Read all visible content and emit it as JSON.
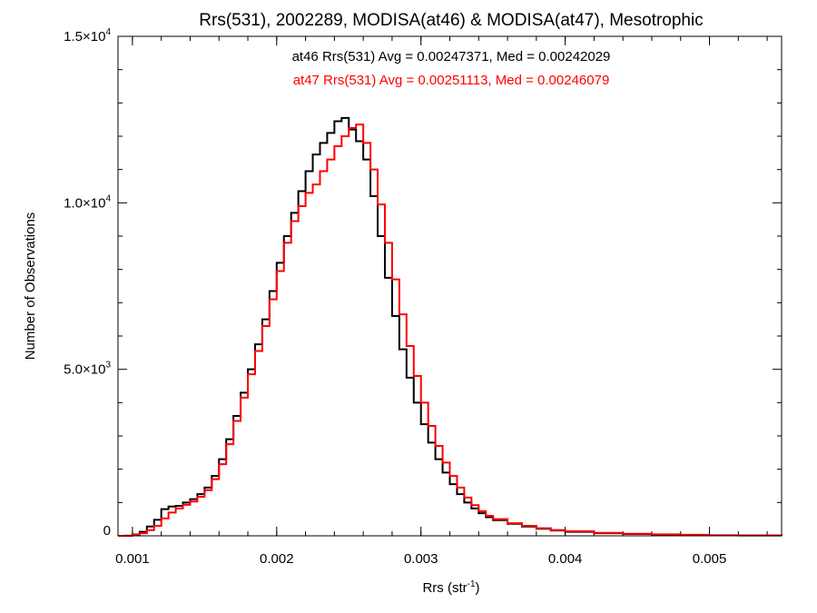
{
  "chart_data": {
    "type": "line",
    "style": "step histogram",
    "title": "Rrs(531), 2002289, MODISA(at46) & MODISA(at47), Mesotrophic",
    "xlabel": {
      "base": "Rrs (str",
      "sup": "-1",
      "tail": ")"
    },
    "ylabel": "Number of Observations",
    "xlim": [
      0.0009,
      0.0055
    ],
    "ylim": [
      0,
      15000
    ],
    "x_ticks": [
      {
        "value": 0.001,
        "label": "0.001"
      },
      {
        "value": 0.002,
        "label": "0.002"
      },
      {
        "value": 0.003,
        "label": "0.003"
      },
      {
        "value": 0.004,
        "label": "0.004"
      },
      {
        "value": 0.005,
        "label": "0.005"
      }
    ],
    "x_minor_step": 0.0002,
    "y_ticks": [
      {
        "value": 0,
        "base": "0",
        "sup": ""
      },
      {
        "value": 5000,
        "base": "5.0×10",
        "sup": "3"
      },
      {
        "value": 10000,
        "base": "1.0×10",
        "sup": "4"
      },
      {
        "value": 15000,
        "base": "1.5×10",
        "sup": "4"
      }
    ],
    "y_minor_step": 1000,
    "annotations": [
      {
        "text": "at46 Rrs(531) Avg = 0.00247371, Med = 0.00242029",
        "color": "#000000"
      },
      {
        "text": "at47 Rrs(531) Avg = 0.00251113, Med = 0.00246079",
        "color": "#ff0000"
      }
    ],
    "series": [
      {
        "color": "#000000",
        "points": [
          [
            0.0009,
            0
          ],
          [
            0.00095,
            5
          ],
          [
            0.001,
            40
          ],
          [
            0.00105,
            120
          ],
          [
            0.0011,
            280
          ],
          [
            0.00115,
            480
          ],
          [
            0.0012,
            800
          ],
          [
            0.00125,
            880
          ],
          [
            0.0013,
            900
          ],
          [
            0.00135,
            1000
          ],
          [
            0.0014,
            1100
          ],
          [
            0.00145,
            1250
          ],
          [
            0.0015,
            1450
          ],
          [
            0.00155,
            1800
          ],
          [
            0.0016,
            2300
          ],
          [
            0.00165,
            2900
          ],
          [
            0.0017,
            3600
          ],
          [
            0.00175,
            4300
          ],
          [
            0.0018,
            5000
          ],
          [
            0.00185,
            5750
          ],
          [
            0.0019,
            6500
          ],
          [
            0.00195,
            7350
          ],
          [
            0.002,
            8200
          ],
          [
            0.00205,
            9000
          ],
          [
            0.0021,
            9700
          ],
          [
            0.00215,
            10350
          ],
          [
            0.0022,
            10950
          ],
          [
            0.00225,
            11450
          ],
          [
            0.0023,
            11800
          ],
          [
            0.00235,
            12100
          ],
          [
            0.0024,
            12450
          ],
          [
            0.00245,
            12550
          ],
          [
            0.0025,
            12200
          ],
          [
            0.00255,
            11850
          ],
          [
            0.0026,
            11300
          ],
          [
            0.00265,
            10200
          ],
          [
            0.0027,
            9000
          ],
          [
            0.00275,
            7750
          ],
          [
            0.0028,
            6600
          ],
          [
            0.00285,
            5600
          ],
          [
            0.0029,
            4750
          ],
          [
            0.00295,
            4000
          ],
          [
            0.003,
            3350
          ],
          [
            0.00305,
            2800
          ],
          [
            0.0031,
            2300
          ],
          [
            0.00315,
            1900
          ],
          [
            0.0032,
            1550
          ],
          [
            0.00325,
            1250
          ],
          [
            0.0033,
            1000
          ],
          [
            0.00335,
            820
          ],
          [
            0.0034,
            680
          ],
          [
            0.00345,
            560
          ],
          [
            0.0035,
            470
          ],
          [
            0.0036,
            360
          ],
          [
            0.0037,
            280
          ],
          [
            0.0038,
            210
          ],
          [
            0.0039,
            160
          ],
          [
            0.004,
            120
          ],
          [
            0.0042,
            80
          ],
          [
            0.0044,
            55
          ],
          [
            0.0046,
            40
          ],
          [
            0.0048,
            25
          ],
          [
            0.005,
            15
          ],
          [
            0.0052,
            10
          ],
          [
            0.0055,
            5
          ]
        ]
      },
      {
        "color": "#ff0000",
        "points": [
          [
            0.0009,
            0
          ],
          [
            0.00095,
            5
          ],
          [
            0.001,
            30
          ],
          [
            0.00105,
            80
          ],
          [
            0.0011,
            170
          ],
          [
            0.00115,
            300
          ],
          [
            0.0012,
            520
          ],
          [
            0.00125,
            700
          ],
          [
            0.0013,
            820
          ],
          [
            0.00135,
            930
          ],
          [
            0.0014,
            1030
          ],
          [
            0.00145,
            1170
          ],
          [
            0.0015,
            1370
          ],
          [
            0.00155,
            1700
          ],
          [
            0.0016,
            2150
          ],
          [
            0.00165,
            2750
          ],
          [
            0.0017,
            3450
          ],
          [
            0.00175,
            4150
          ],
          [
            0.0018,
            4850
          ],
          [
            0.00185,
            5550
          ],
          [
            0.0019,
            6300
          ],
          [
            0.00195,
            7100
          ],
          [
            0.002,
            7950
          ],
          [
            0.00205,
            8800
          ],
          [
            0.0021,
            9450
          ],
          [
            0.00215,
            9900
          ],
          [
            0.0022,
            10300
          ],
          [
            0.00225,
            10550
          ],
          [
            0.0023,
            10950
          ],
          [
            0.00235,
            11300
          ],
          [
            0.0024,
            11700
          ],
          [
            0.00245,
            12000
          ],
          [
            0.0025,
            12250
          ],
          [
            0.00255,
            12350
          ],
          [
            0.0026,
            11800
          ],
          [
            0.00265,
            11000
          ],
          [
            0.0027,
            9950
          ],
          [
            0.00275,
            8800
          ],
          [
            0.0028,
            7700
          ],
          [
            0.00285,
            6650
          ],
          [
            0.0029,
            5700
          ],
          [
            0.00295,
            4800
          ],
          [
            0.003,
            4000
          ],
          [
            0.00305,
            3300
          ],
          [
            0.0031,
            2700
          ],
          [
            0.00315,
            2200
          ],
          [
            0.0032,
            1800
          ],
          [
            0.00325,
            1450
          ],
          [
            0.0033,
            1150
          ],
          [
            0.00335,
            920
          ],
          [
            0.0034,
            740
          ],
          [
            0.00345,
            600
          ],
          [
            0.0035,
            500
          ],
          [
            0.0036,
            380
          ],
          [
            0.0037,
            300
          ],
          [
            0.0038,
            230
          ],
          [
            0.0039,
            175
          ],
          [
            0.004,
            135
          ],
          [
            0.0042,
            90
          ],
          [
            0.0044,
            60
          ],
          [
            0.0046,
            45
          ],
          [
            0.0048,
            30
          ],
          [
            0.005,
            18
          ],
          [
            0.0052,
            12
          ],
          [
            0.0055,
            6
          ]
        ]
      }
    ]
  }
}
